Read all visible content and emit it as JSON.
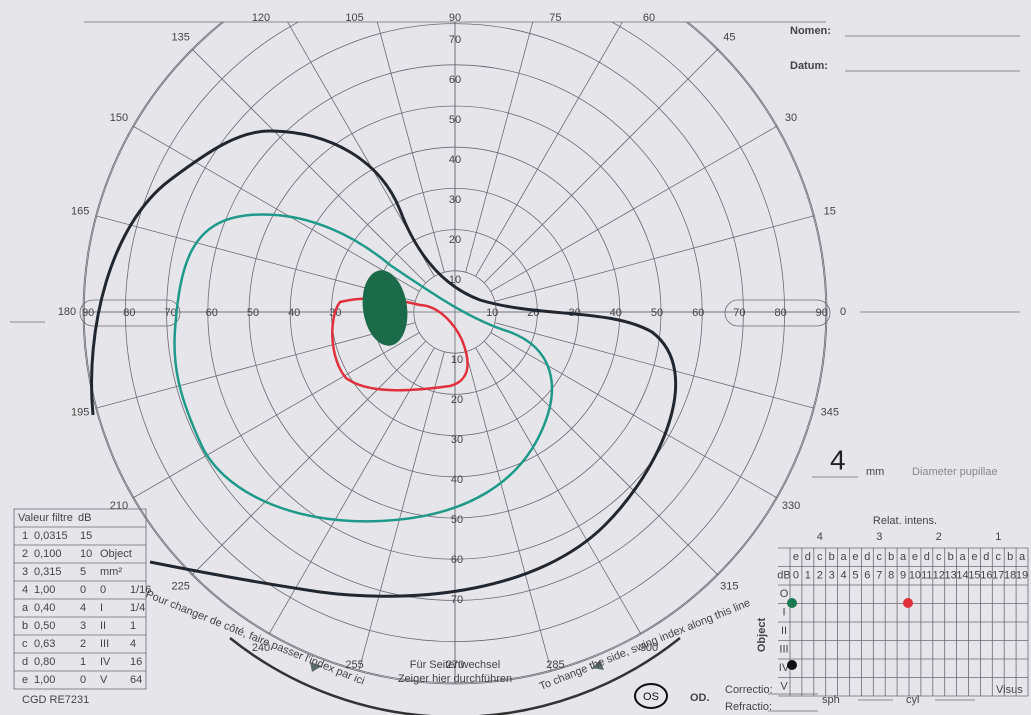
{
  "header": {
    "name_label": "Nomen:",
    "date_label": "Datum:"
  },
  "meridians": [
    0,
    15,
    30,
    45,
    60,
    75,
    90,
    105,
    120,
    135,
    150,
    165,
    180,
    195,
    210,
    225,
    240,
    255,
    270,
    285,
    300,
    315,
    330,
    345
  ],
  "horizontal_scale": {
    "left": [
      90,
      80,
      70,
      60,
      50,
      40,
      30
    ],
    "right": [
      10,
      20,
      30,
      40,
      50,
      60,
      70,
      80,
      90
    ]
  },
  "vertical_scale": {
    "up": [
      70,
      60,
      50,
      40,
      30,
      20,
      10
    ],
    "down": [
      10,
      20,
      30,
      40,
      50,
      60,
      70
    ]
  },
  "pupil": {
    "value": "4",
    "unit": "mm",
    "label": "Diameter pupillae"
  },
  "intensity_grid": {
    "title": "Relat. intens.",
    "groups": [
      "4",
      "3",
      "2",
      "1"
    ],
    "letters": [
      "e",
      "d",
      "c",
      "b",
      "a"
    ],
    "db_label": "dB",
    "columns": [
      0,
      1,
      2,
      3,
      4,
      5,
      6,
      7,
      8,
      9,
      10,
      11,
      12,
      13,
      14,
      15,
      16,
      17,
      18,
      19
    ],
    "rows": [
      "O",
      "I",
      "II",
      "III",
      "IV",
      "V"
    ],
    "object_label": "Object"
  },
  "filter_table": {
    "headers": [
      "Valeur filtre",
      "dB"
    ],
    "rows": [
      [
        "1",
        "0,0315",
        "15"
      ],
      [
        "2",
        "0,100",
        "10",
        "Object"
      ],
      [
        "3",
        "0,315",
        "5",
        "mm²"
      ],
      [
        "4",
        "1,00",
        "0",
        "0",
        "1/16"
      ],
      [
        "a",
        "0,40",
        "4",
        "I",
        "1/4"
      ],
      [
        "b",
        "0,50",
        "3",
        "II",
        "1"
      ],
      [
        "c",
        "0,63",
        "2",
        "III",
        "4"
      ],
      [
        "d",
        "0,80",
        "1",
        "IV",
        "16"
      ],
      [
        "e",
        "1,00",
        "0",
        "V",
        "64"
      ]
    ],
    "code": "CGD RE7231"
  },
  "footer": {
    "left_note": "Pour changer de côté, faire passer l'index par ici",
    "center_note_1": "Für Seitenwechsel",
    "center_note_2": "Zeiger hier durchführen",
    "right_note": "To change the side, swing index along this line",
    "eye_os": "OS",
    "eye_od": "OD.",
    "correction": "Correctio:",
    "refraction": "Refractio:",
    "sph": "sph",
    "cyl": "cyl",
    "visus": "Visus"
  }
}
